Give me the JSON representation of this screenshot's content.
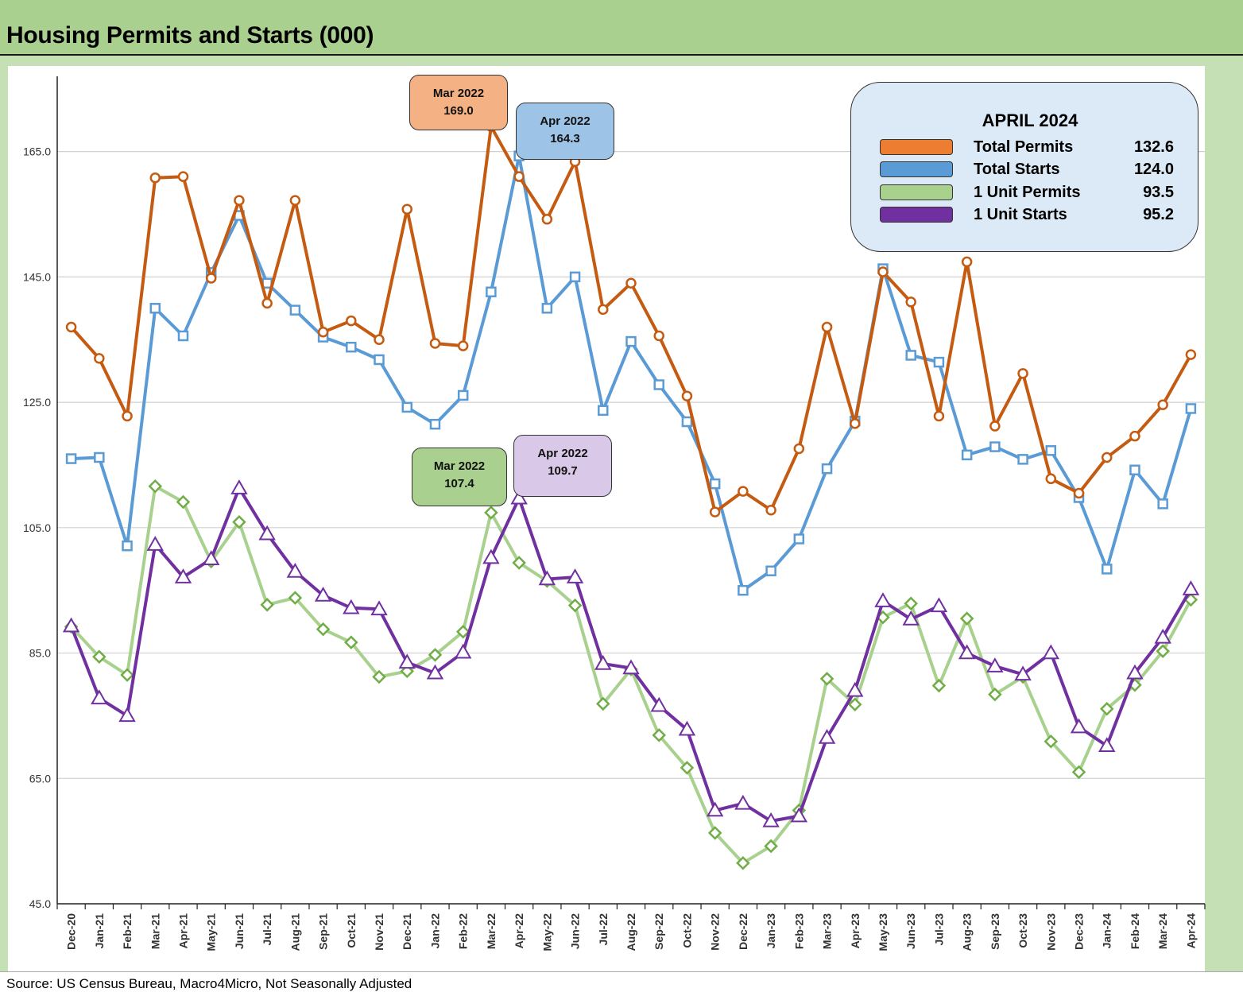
{
  "title": "Housing Permits and Starts (000)",
  "source": "Source: US Census Bureau, Macro4Micro, Not Seasonally Adjusted",
  "colors": {
    "background": "#c5e0b4",
    "title_bar": "#a9d08e",
    "total_permits": "#c55a11",
    "total_starts": "#5b9bd5",
    "one_unit_permits": "#a9d18e",
    "one_unit_starts": "#7030a0"
  },
  "legend": {
    "title": "APRIL 2024",
    "items": [
      {
        "label": "Total Permits",
        "value": "132.6",
        "color": "#ed7d31"
      },
      {
        "label": "Total Starts",
        "value": "124.0",
        "color": "#5b9bd5"
      },
      {
        "label": "1 Unit Permits",
        "value": "93.5",
        "color": "#a9d18e"
      },
      {
        "label": "1 Unit Starts",
        "value": "95.2",
        "color": "#7030a0"
      }
    ]
  },
  "callouts": [
    {
      "line1": "Mar 2022",
      "line2": "169.0",
      "fill": "#f4b183"
    },
    {
      "line1": "Apr 2022",
      "line2": "164.3",
      "fill": "#9dc3e6"
    },
    {
      "line1": "Mar 2022",
      "line2": "107.4",
      "fill": "#a9d08e"
    },
    {
      "line1": "Apr 2022",
      "line2": "109.7",
      "fill": "#d9c8e8"
    }
  ],
  "chart_data": {
    "type": "line",
    "title": "Housing Permits and Starts (000)",
    "xlabel": "",
    "ylabel": "",
    "ylim": [
      45,
      177
    ],
    "yticks": [
      "45.0",
      "65.0",
      "85.0",
      "105.0",
      "125.0",
      "145.0",
      "165.0"
    ],
    "grid": true,
    "legend_position": "top-right",
    "categories": [
      "Dec-20",
      "Jan-21",
      "Feb-21",
      "Mar-21",
      "Apr-21",
      "May-21",
      "Jun-21",
      "Jul-21",
      "Aug-21",
      "Sep-21",
      "Oct-21",
      "Nov-21",
      "Dec-21",
      "Jan-22",
      "Feb-22",
      "Mar-22",
      "Apr-22",
      "May-22",
      "Jun-22",
      "Jul-22",
      "Aug-22",
      "Sep-22",
      "Oct-22",
      "Nov-22",
      "Dec-22",
      "Jan-23",
      "Feb-23",
      "Mar-23",
      "Apr-23",
      "May-23",
      "Jun-23",
      "Jul-23",
      "Aug-23",
      "Sep-23",
      "Oct-23",
      "Nov-23",
      "Dec-23",
      "Jan-24",
      "Feb-24",
      "Mar-24",
      "Apr-24"
    ],
    "series": [
      {
        "name": "Total Permits",
        "marker": "circle",
        "values": [
          137.0,
          132.0,
          122.8,
          160.8,
          161.0,
          144.8,
          157.2,
          140.8,
          157.2,
          136.2,
          138.0,
          135.0,
          155.8,
          134.4,
          134.0,
          169.0,
          161.0,
          154.2,
          163.4,
          139.8,
          144.0,
          135.6,
          126.0,
          107.5,
          110.8,
          107.8,
          117.6,
          137.0,
          121.6,
          145.8,
          141.0,
          122.8,
          147.4,
          121.2,
          129.6,
          112.8,
          110.5,
          116.2,
          119.6,
          124.6,
          132.6
        ]
      },
      {
        "name": "Total Starts",
        "marker": "square",
        "values": [
          116.0,
          116.2,
          102.1,
          140.0,
          135.6,
          145.7,
          154.8,
          144.0,
          139.7,
          135.4,
          133.8,
          131.8,
          124.2,
          121.5,
          126.1,
          142.6,
          164.3,
          140.0,
          145.0,
          123.7,
          134.7,
          127.8,
          121.9,
          112.0,
          95.0,
          98.1,
          103.2,
          114.4,
          122.0,
          146.3,
          132.5,
          131.4,
          116.6,
          117.9,
          115.9,
          117.3,
          109.8,
          98.4,
          114.2,
          108.8,
          124.0
        ]
      },
      {
        "name": "1 Unit Permits",
        "marker": "diamond",
        "values": [
          89.2,
          84.4,
          81.5,
          111.6,
          109.1,
          99.6,
          105.9,
          92.7,
          93.8,
          88.8,
          86.7,
          81.2,
          82.1,
          84.7,
          88.4,
          107.4,
          99.4,
          96.5,
          92.6,
          76.9,
          82.4,
          71.9,
          66.7,
          56.3,
          51.5,
          54.2,
          59.9,
          80.9,
          76.8,
          90.7,
          92.9,
          79.8,
          90.5,
          78.4,
          81.2,
          70.9,
          66.0,
          76.1,
          79.9,
          85.3,
          93.5
        ]
      },
      {
        "name": "1 Unit Starts",
        "marker": "triangle",
        "values": [
          89.3,
          77.8,
          75.0,
          102.3,
          97.1,
          100.0,
          111.3,
          104.0,
          98.0,
          94.2,
          92.2,
          92.0,
          83.5,
          81.8,
          85.1,
          100.2,
          109.7,
          96.8,
          97.1,
          83.3,
          82.6,
          76.6,
          72.8,
          59.9,
          61.0,
          58.2,
          59.0,
          71.5,
          79.0,
          93.3,
          90.4,
          92.5,
          85.0,
          82.9,
          81.6,
          85.0,
          73.2,
          70.2,
          81.8,
          87.5,
          95.2
        ]
      }
    ]
  }
}
